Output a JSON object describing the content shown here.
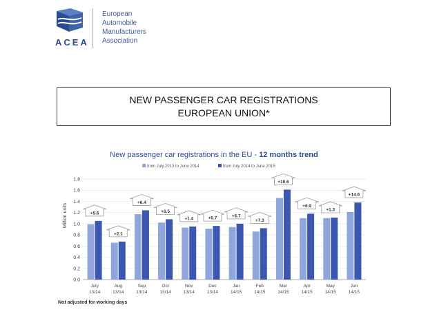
{
  "logo": {
    "abbr": "ACEA",
    "name_lines": [
      "European",
      "Automobile",
      "Manufacturers",
      "Association"
    ]
  },
  "heading": {
    "line1": "NEW PASSENGER CAR REGISTRATIONS",
    "line2": "EUROPEAN UNION*"
  },
  "footnote": "Not adjusted for working days",
  "colors": {
    "series1": "#8fa6dc",
    "series2": "#3b57b0",
    "arrow_stroke": "#9a9a9a",
    "grid": "#e3e3e3"
  },
  "chart_data": {
    "type": "bar",
    "title": "New passenger car registrations in the EU - ",
    "title_bold": "12 months trend",
    "ylabel": "Million units",
    "xlabel": "",
    "ylim": [
      0,
      1.8
    ],
    "yticks": [
      "0.0",
      "0.2",
      "0.4",
      "0.6",
      "0.8",
      "1.0",
      "1.2",
      "1.4",
      "1.6",
      "1.8"
    ],
    "grid": true,
    "legend_position": "top",
    "categories": [
      [
        "July",
        "13/14"
      ],
      [
        "Aug",
        "13/14"
      ],
      [
        "Sep",
        "13/14"
      ],
      [
        "Oct",
        "13/14"
      ],
      [
        "Nov",
        "13/14"
      ],
      [
        "Dec",
        "13/14"
      ],
      [
        "Jan",
        "14/15"
      ],
      [
        "Feb",
        "14/15"
      ],
      [
        "Mar",
        "14/15"
      ],
      [
        "Apr",
        "14/15"
      ],
      [
        "May",
        "14/15"
      ],
      [
        "Jun",
        "14/15"
      ]
    ],
    "series": [
      {
        "name": "from July 2013 to June 2014",
        "values": [
          0.99,
          0.66,
          1.17,
          1.02,
          0.93,
          0.91,
          0.94,
          0.86,
          1.46,
          1.1,
          1.1,
          1.21
        ]
      },
      {
        "name": "from July 2014 to June 2015",
        "values": [
          1.05,
          0.68,
          1.24,
          1.08,
          0.95,
          0.96,
          1.0,
          0.92,
          1.61,
          1.18,
          1.11,
          1.38
        ]
      }
    ],
    "change_labels": [
      "+5.6",
      "+2.1",
      "+6.4",
      "+6.5",
      "+1.4",
      "+6.7",
      "+6.7",
      "+7.3",
      "+10.6",
      "+6.9",
      "+1.3",
      "+14.6"
    ]
  }
}
